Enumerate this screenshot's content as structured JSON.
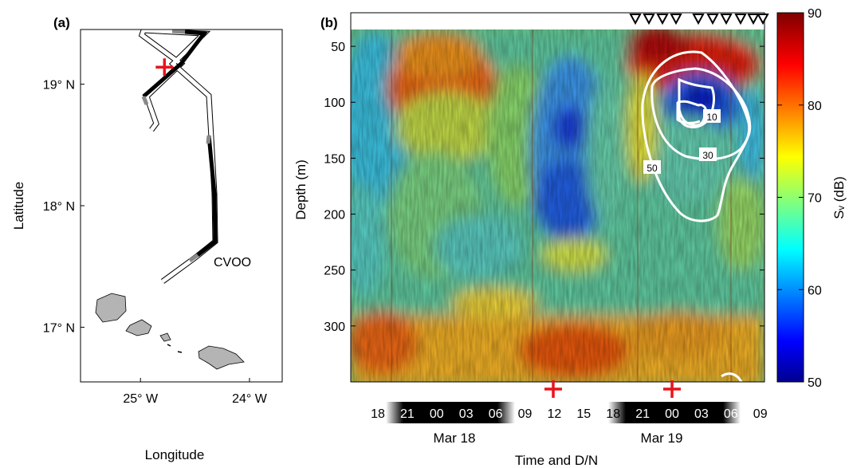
{
  "panel_a": {
    "label": "(a)",
    "xlabel": "Longitude",
    "ylabel": "Latitude",
    "station_label": "CVOO",
    "chart_data": {
      "type": "map",
      "xlim": [
        -25.55,
        -23.7
      ],
      "ylim": [
        16.55,
        19.45
      ],
      "x_ticks": [
        {
          "value": -25,
          "label": "25° W"
        },
        {
          "value": -24,
          "label": "24° W"
        }
      ],
      "y_ticks": [
        {
          "value": 17,
          "label": "17° N"
        },
        {
          "value": 18,
          "label": "18° N"
        },
        {
          "value": 19,
          "label": "19° N"
        }
      ],
      "marker": {
        "lon": -24.78,
        "lat": 19.14,
        "color": "#e8141c"
      },
      "station": {
        "lon": -24.25,
        "lat": 17.58
      }
    }
  },
  "panel_b": {
    "label": "(b)",
    "xlabel": "Time and D/N",
    "ylabel": "Depth (m)",
    "colorbar_label": "Sᵥ (dB)",
    "date_labels": [
      "Mar 18",
      "Mar 19"
    ],
    "chart_data": {
      "type": "heatmap",
      "ylim": [
        350,
        20
      ],
      "y_ticks": [
        50,
        100,
        150,
        200,
        250,
        300
      ],
      "time_ticks": [
        "18",
        "21",
        "00",
        "03",
        "06",
        "09",
        "12",
        "15",
        "18",
        "21",
        "00",
        "03",
        "06",
        "09"
      ],
      "clim": [
        50,
        90
      ],
      "colorbar_ticks": [
        50,
        60,
        70,
        80,
        90
      ],
      "colormap": "jet",
      "contour_labels": [
        "10",
        "30",
        "50"
      ],
      "cross_marker_color": "#e8141c",
      "triangle_marker_count": 9
    }
  }
}
